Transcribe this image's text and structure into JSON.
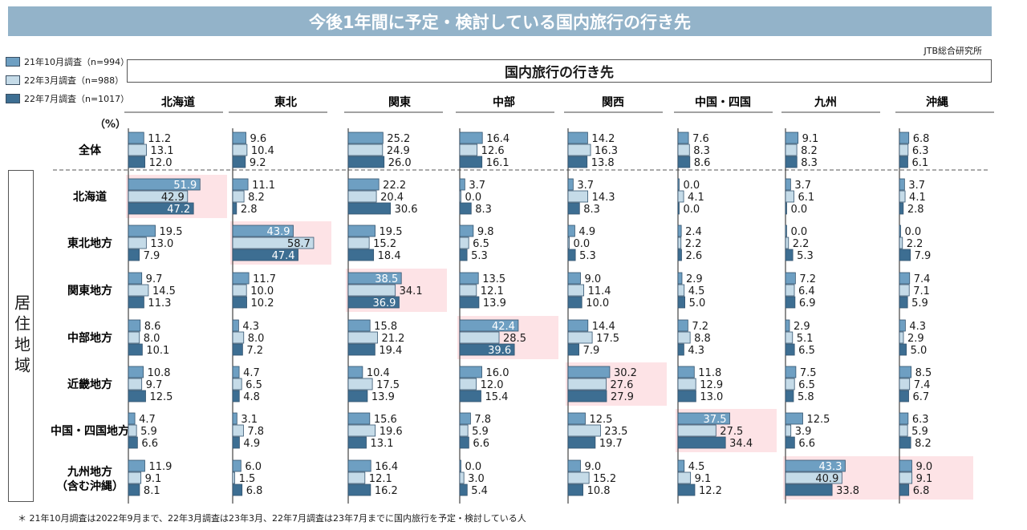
{
  "title": "今後1年間に予定・検討している国内旅行の行き先",
  "source": "JTB総合研究所",
  "header": "国内旅行の行き先",
  "vertical_label": "居住地域",
  "percent_label": "（%）",
  "footnote": "＊ 21年10月調査は2022年9月まで、22年3月調査は23年3月、22年7月調査は23年7月までに国内旅行を予定・検討している人",
  "colors": {
    "title_bg": "#93b3c9",
    "series": [
      "#6e9fc2",
      "#c5dbe8",
      "#3d6e92"
    ],
    "highlight": "#fde3e6",
    "axis": "#444444"
  },
  "chart_data": {
    "type": "bar",
    "orientation": "horizontal",
    "series_names": [
      "21年10月調査（n=994）",
      "22年3月調査（n=988）",
      "22年7月調査（n=1017）"
    ],
    "columns": [
      "北海道",
      "東北",
      "関東",
      "中部",
      "関西",
      "中国・四国",
      "九州",
      "沖縄"
    ],
    "rows": [
      {
        "label": "全体",
        "values": [
          [
            11.2,
            13.1,
            12.0
          ],
          [
            9.6,
            10.4,
            9.2
          ],
          [
            25.2,
            24.9,
            26.0
          ],
          [
            16.4,
            12.6,
            16.1
          ],
          [
            14.2,
            16.3,
            13.8
          ],
          [
            7.6,
            8.3,
            8.6
          ],
          [
            9.1,
            8.2,
            8.3
          ],
          [
            6.8,
            6.3,
            6.1
          ]
        ]
      },
      {
        "label": "北海道",
        "values": [
          [
            51.9,
            42.9,
            47.2
          ],
          [
            11.1,
            8.2,
            2.8
          ],
          [
            22.2,
            20.4,
            30.6
          ],
          [
            3.7,
            0.0,
            8.3
          ],
          [
            3.7,
            14.3,
            8.3
          ],
          [
            0.0,
            4.1,
            0.0
          ],
          [
            3.7,
            6.1,
            0.0
          ],
          [
            3.7,
            4.1,
            2.8
          ]
        ]
      },
      {
        "label": "東北地方",
        "values": [
          [
            19.5,
            13.0,
            7.9
          ],
          [
            43.9,
            58.7,
            47.4
          ],
          [
            19.5,
            15.2,
            18.4
          ],
          [
            9.8,
            6.5,
            5.3
          ],
          [
            4.9,
            0.0,
            5.3
          ],
          [
            2.4,
            2.2,
            2.6
          ],
          [
            0.0,
            2.2,
            5.3
          ],
          [
            0.0,
            2.2,
            7.9
          ]
        ]
      },
      {
        "label": "関東地方",
        "values": [
          [
            9.7,
            14.5,
            11.3
          ],
          [
            11.7,
            10.0,
            10.2
          ],
          [
            38.5,
            34.1,
            36.9
          ],
          [
            13.5,
            12.1,
            13.9
          ],
          [
            9.0,
            11.4,
            10.0
          ],
          [
            2.9,
            4.5,
            5.0
          ],
          [
            7.2,
            6.4,
            6.9
          ],
          [
            7.4,
            7.1,
            5.9
          ]
        ]
      },
      {
        "label": "中部地方",
        "values": [
          [
            8.6,
            8.0,
            10.1
          ],
          [
            4.3,
            8.0,
            7.2
          ],
          [
            15.8,
            21.2,
            19.4
          ],
          [
            42.4,
            28.5,
            39.6
          ],
          [
            14.4,
            17.5,
            7.9
          ],
          [
            7.2,
            8.8,
            4.3
          ],
          [
            2.9,
            5.1,
            6.5
          ],
          [
            4.3,
            2.9,
            5.0
          ]
        ]
      },
      {
        "label": "近畿地方",
        "values": [
          [
            10.8,
            9.7,
            12.5
          ],
          [
            4.7,
            6.5,
            4.8
          ],
          [
            10.4,
            17.5,
            13.9
          ],
          [
            16.0,
            12.0,
            15.4
          ],
          [
            30.2,
            27.6,
            27.9
          ],
          [
            11.8,
            12.9,
            13.0
          ],
          [
            7.5,
            6.5,
            5.8
          ],
          [
            8.5,
            7.4,
            6.7
          ]
        ]
      },
      {
        "label": "中国・四国地方",
        "values": [
          [
            4.7,
            5.9,
            6.6
          ],
          [
            3.1,
            7.8,
            4.9
          ],
          [
            15.6,
            19.6,
            13.1
          ],
          [
            7.8,
            5.9,
            6.6
          ],
          [
            12.5,
            23.5,
            19.7
          ],
          [
            37.5,
            27.5,
            34.4
          ],
          [
            12.5,
            3.9,
            6.6
          ],
          [
            6.3,
            5.9,
            8.2
          ]
        ]
      },
      {
        "label": "九州地方",
        "label2": "（含む沖縄）",
        "values": [
          [
            11.9,
            9.1,
            8.1
          ],
          [
            6.0,
            1.5,
            6.8
          ],
          [
            16.4,
            12.1,
            16.2
          ],
          [
            0.0,
            3.0,
            5.4
          ],
          [
            9.0,
            15.2,
            10.8
          ],
          [
            4.5,
            9.1,
            12.2
          ],
          [
            43.3,
            40.9,
            33.8
          ],
          [
            9.0,
            9.1,
            6.8
          ]
        ]
      }
    ],
    "highlighted_cells": [
      [
        1,
        0
      ],
      [
        2,
        1
      ],
      [
        3,
        2
      ],
      [
        4,
        3
      ],
      [
        5,
        4
      ],
      [
        6,
        5
      ],
      [
        7,
        6
      ],
      [
        7,
        7
      ]
    ]
  }
}
